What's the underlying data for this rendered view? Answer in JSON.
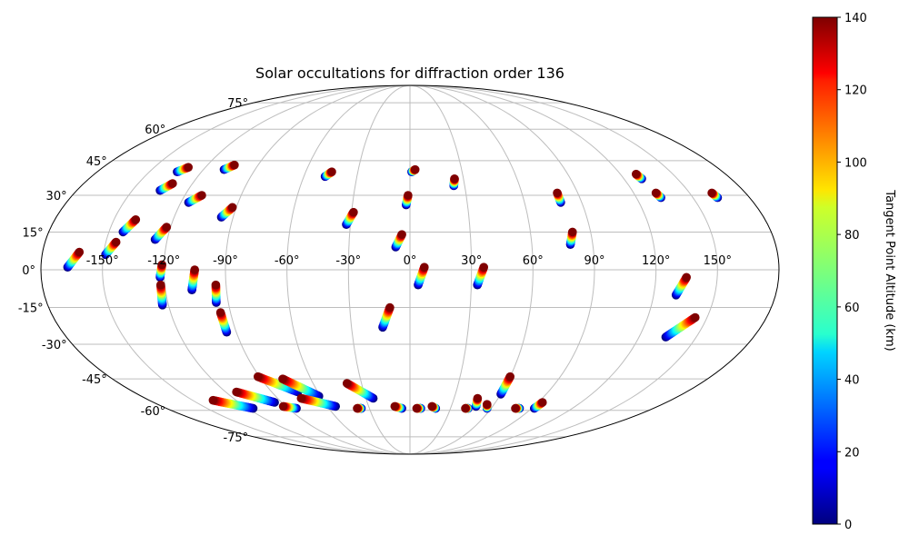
{
  "chart_data": {
    "type": "scatter",
    "projection": "mollweide",
    "title": "Solar occultations for diffraction order 136",
    "lon_ticks": [
      "-150°",
      "-120°",
      "-90°",
      "-60°",
      "-30°",
      "0°",
      "30°",
      "60°",
      "90°",
      "120°",
      "150°"
    ],
    "lat_ticks": [
      "75°",
      "60°",
      "45°",
      "30°",
      "15°",
      "0°",
      "-15°",
      "-30°",
      "-45°",
      "-60°",
      "-75°"
    ],
    "grid": true,
    "colorbar": {
      "label": "Tangent Point Altitude (km)",
      "colormap": "jet",
      "range": [
        0,
        140
      ],
      "ticks": [
        "0",
        "20",
        "40",
        "60",
        "80",
        "100",
        "120",
        "140"
      ]
    },
    "tracks": [
      {
        "lon_start": -167,
        "lat_start": 1,
        "lon_end": -162,
        "lat_end": 7,
        "alt_start": 0,
        "alt_end": 140
      },
      {
        "lon_start": -149,
        "lat_start": 6,
        "lon_end": -145,
        "lat_end": 11,
        "alt_start": 0,
        "alt_end": 140
      },
      {
        "lon_start": -143,
        "lat_start": 15,
        "lon_end": -139,
        "lat_end": 20,
        "alt_start": 0,
        "alt_end": 140
      },
      {
        "lon_start": -135,
        "lat_start": 32,
        "lon_end": -131,
        "lat_end": 35,
        "alt_start": 0,
        "alt_end": 140
      },
      {
        "lon_start": -134,
        "lat_start": 40,
        "lon_end": -130,
        "lat_end": 42,
        "alt_start": 0,
        "alt_end": 140
      },
      {
        "lon_start": -126,
        "lat_start": 12,
        "lon_end": -122,
        "lat_end": 17,
        "alt_start": 0,
        "alt_end": 140
      },
      {
        "lon_start": -122,
        "lat_start": -3,
        "lon_end": -121,
        "lat_end": 2,
        "alt_start": 0,
        "alt_end": 140
      },
      {
        "lon_start": -123,
        "lat_start": -14,
        "lon_end": -122,
        "lat_end": -6,
        "alt_start": 0,
        "alt_end": 140
      },
      {
        "lon_start": -116,
        "lat_start": 27,
        "lon_end": -111,
        "lat_end": 30,
        "alt_start": 0,
        "alt_end": 140
      },
      {
        "lon_start": -108,
        "lat_start": 41,
        "lon_end": -104,
        "lat_end": 43,
        "alt_start": 0,
        "alt_end": 140
      },
      {
        "lon_start": -107,
        "lat_start": -8,
        "lon_end": -105,
        "lat_end": 0,
        "alt_start": 0,
        "alt_end": 140
      },
      {
        "lon_start": -96,
        "lat_start": 21,
        "lon_end": -92,
        "lat_end": 25,
        "alt_start": 0,
        "alt_end": 140
      },
      {
        "lon_start": -96,
        "lat_start": -13,
        "lon_end": -95,
        "lat_end": -6,
        "alt_start": 0,
        "alt_end": 140
      },
      {
        "lon_start": -95,
        "lat_start": -25,
        "lon_end": -95,
        "lat_end": -17,
        "alt_start": 0,
        "alt_end": 140
      },
      {
        "lon_start": -48,
        "lat_start": 38,
        "lon_end": -45,
        "lat_end": 40,
        "alt_start": 0,
        "alt_end": 140
      },
      {
        "lon_start": -32,
        "lat_start": 18,
        "lon_end": -29,
        "lat_end": 23,
        "alt_start": 0,
        "alt_end": 140
      },
      {
        "lon_start": 1,
        "lat_start": 40,
        "lon_end": 3,
        "lat_end": 41,
        "alt_start": 0,
        "alt_end": 140
      },
      {
        "lon_start": -2,
        "lat_start": 26,
        "lon_end": -1,
        "lat_end": 30,
        "alt_start": 0,
        "alt_end": 140
      },
      {
        "lon_start": -7,
        "lat_start": 9,
        "lon_end": -4,
        "lat_end": 14,
        "alt_start": 0,
        "alt_end": 140
      },
      {
        "lon_start": -14,
        "lat_start": -23,
        "lon_end": -10,
        "lat_end": -15,
        "alt_start": 0,
        "alt_end": 140
      },
      {
        "lon_start": 4,
        "lat_start": -6,
        "lon_end": 7,
        "lat_end": 1,
        "alt_start": 0,
        "alt_end": 140
      },
      {
        "lon_start": 24,
        "lat_start": 34,
        "lon_end": 25,
        "lat_end": 37,
        "alt_start": 0,
        "alt_end": 140
      },
      {
        "lon_start": 33,
        "lat_start": -6,
        "lon_end": 36,
        "lat_end": 1,
        "alt_start": 0,
        "alt_end": 140
      },
      {
        "lon_start": 79,
        "lat_start": 27,
        "lon_end": 79,
        "lat_end": 31,
        "alt_start": 0,
        "alt_end": 140
      },
      {
        "lon_start": 79,
        "lat_start": 10,
        "lon_end": 81,
        "lat_end": 15,
        "alt_start": 0,
        "alt_end": 140
      },
      {
        "lon_start": 130,
        "lat_start": 37,
        "lon_end": 129,
        "lat_end": 39,
        "alt_start": 0,
        "alt_end": 140
      },
      {
        "lon_start": 133,
        "lat_start": 29,
        "lon_end": 132,
        "lat_end": 31,
        "alt_start": 0,
        "alt_end": 140
      },
      {
        "lon_start": 163,
        "lat_start": 29,
        "lon_end": 162,
        "lat_end": 31,
        "alt_start": 0,
        "alt_end": 140
      },
      {
        "lon_start": 131,
        "lat_start": -10,
        "lon_end": 135,
        "lat_end": -3,
        "alt_start": 0,
        "alt_end": 140
      },
      {
        "lon_start": 134,
        "lat_start": -27,
        "lon_end": 144,
        "lat_end": -19,
        "alt_start": 0,
        "alt_end": 140
      },
      {
        "lon_start": -116,
        "lat_start": -59,
        "lon_end": -136,
        "lat_end": -55,
        "alt_start": 0,
        "alt_end": 140
      },
      {
        "lon_start": -95,
        "lat_start": -56,
        "lon_end": -113,
        "lat_end": -51,
        "alt_start": 0,
        "alt_end": 140
      },
      {
        "lon_start": -84,
        "lat_start": -59,
        "lon_end": -92,
        "lat_end": -58,
        "alt_start": 0,
        "alt_end": 140
      },
      {
        "lon_start": -73,
        "lat_start": -51,
        "lon_end": -91,
        "lat_end": -44,
        "alt_start": 0,
        "alt_end": 140
      },
      {
        "lon_start": -61,
        "lat_start": -53,
        "lon_end": -77,
        "lat_end": -45,
        "alt_start": 0,
        "alt_end": 140
      },
      {
        "lon_start": -54,
        "lat_start": -58,
        "lon_end": -74,
        "lat_end": -54,
        "alt_start": 0,
        "alt_end": 140
      },
      {
        "lon_start": -25,
        "lat_start": -54,
        "lon_end": -39,
        "lat_end": -47,
        "alt_start": 0,
        "alt_end": 140
      },
      {
        "lon_start": -36,
        "lat_start": -59,
        "lon_end": -39,
        "lat_end": -59,
        "alt_start": 0,
        "alt_end": 140
      },
      {
        "lon_start": -6,
        "lat_start": -59,
        "lon_end": -11,
        "lat_end": -58,
        "alt_start": 0,
        "alt_end": 140
      },
      {
        "lon_start": 8,
        "lat_start": -59,
        "lon_end": 5,
        "lat_end": -59,
        "alt_start": 0,
        "alt_end": 140
      },
      {
        "lon_start": 19,
        "lat_start": -59,
        "lon_end": 16,
        "lat_end": -58,
        "alt_start": 0,
        "alt_end": 140
      },
      {
        "lon_start": 43,
        "lat_start": -59,
        "lon_end": 41,
        "lat_end": -59,
        "alt_start": 0,
        "alt_end": 140
      },
      {
        "lon_start": 48,
        "lat_start": -58,
        "lon_end": 46,
        "lat_end": -54,
        "alt_start": 0,
        "alt_end": 140
      },
      {
        "lon_start": 57,
        "lat_start": -59,
        "lon_end": 55,
        "lat_end": -57,
        "alt_start": 0,
        "alt_end": 140
      },
      {
        "lon_start": 60,
        "lat_start": -52,
        "lon_end": 60,
        "lat_end": -44,
        "alt_start": 0,
        "alt_end": 140
      },
      {
        "lon_start": 81,
        "lat_start": -59,
        "lon_end": 78,
        "lat_end": -59,
        "alt_start": 0,
        "alt_end": 140
      },
      {
        "lon_start": 92,
        "lat_start": -59,
        "lon_end": 93,
        "lat_end": -56,
        "alt_start": 0,
        "alt_end": 140
      }
    ]
  }
}
